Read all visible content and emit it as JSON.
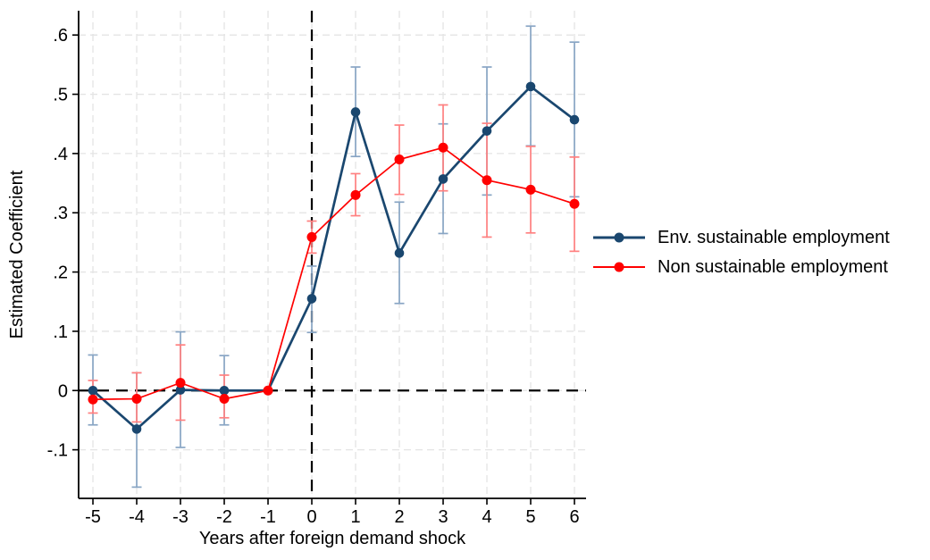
{
  "figure": {
    "background": "#ffffff"
  },
  "chart_data": {
    "type": "line",
    "title": "",
    "xlabel": "Years after foreign demand shock",
    "ylabel": "Estimated Coefficient",
    "xlim": [
      -5.327,
      6.265
    ],
    "ylim": [
      -0.182,
      0.641
    ],
    "xticks": {
      "values": [
        -5,
        -4,
        -3,
        -2,
        -1,
        0,
        1,
        2,
        3,
        4,
        5,
        6
      ],
      "labels": [
        "-5",
        "-4",
        "-3",
        "-2",
        "-1",
        "0",
        "1",
        "2",
        "3",
        "4",
        "5",
        "6"
      ]
    },
    "yticks": {
      "values": [
        -0.1,
        0,
        0.1,
        0.2,
        0.3,
        0.4,
        0.5,
        0.6
      ],
      "labels": [
        "-.1",
        "0",
        ".1",
        ".2",
        ".3",
        ".4",
        ".5",
        ".6"
      ]
    },
    "grid": {
      "show": true,
      "color": "#e4e4e4",
      "style": "dashed"
    },
    "reference_lines": [
      {
        "orientation": "vertical",
        "x": 0,
        "color": "#000000",
        "style": "dashed"
      },
      {
        "orientation": "horizontal",
        "y": 0,
        "color": "#000000",
        "style": "dashed"
      }
    ],
    "legend": {
      "position": "right"
    },
    "series": [
      {
        "name": "Env. sustainable employment",
        "color": "#1a476f",
        "ci_color": "#88a5c4",
        "x": [
          -5,
          -4,
          -3,
          -2,
          -1,
          0,
          1,
          2,
          3,
          4,
          5,
          6
        ],
        "y": [
          0.0,
          -0.065,
          0.001,
          0.0,
          0.0,
          0.155,
          0.47,
          0.232,
          0.357,
          0.438,
          0.513,
          0.457
        ],
        "ci_low": [
          -0.058,
          -0.163,
          -0.096,
          -0.058,
          null,
          0.098,
          0.395,
          0.147,
          0.265,
          0.33,
          0.413,
          0.327
        ],
        "ci_high": [
          0.06,
          0.03,
          0.099,
          0.059,
          null,
          0.21,
          0.546,
          0.318,
          0.45,
          0.546,
          0.615,
          0.588
        ]
      },
      {
        "name": "Non sustainable employment",
        "color": "#ff0000",
        "ci_color": "#ff8080",
        "x": [
          -5,
          -4,
          -3,
          -2,
          -1,
          0,
          1,
          2,
          3,
          4,
          5,
          6
        ],
        "y": [
          -0.015,
          -0.014,
          0.013,
          -0.014,
          0.0,
          0.259,
          0.33,
          0.39,
          0.41,
          0.355,
          0.339,
          0.315
        ],
        "ci_low": [
          -0.038,
          -0.053,
          -0.05,
          -0.046,
          null,
          0.232,
          0.295,
          0.331,
          0.337,
          0.259,
          0.266,
          0.235
        ],
        "ci_high": [
          0.017,
          0.03,
          0.077,
          0.026,
          null,
          0.286,
          0.366,
          0.448,
          0.482,
          0.451,
          0.412,
          0.394
        ]
      }
    ]
  }
}
